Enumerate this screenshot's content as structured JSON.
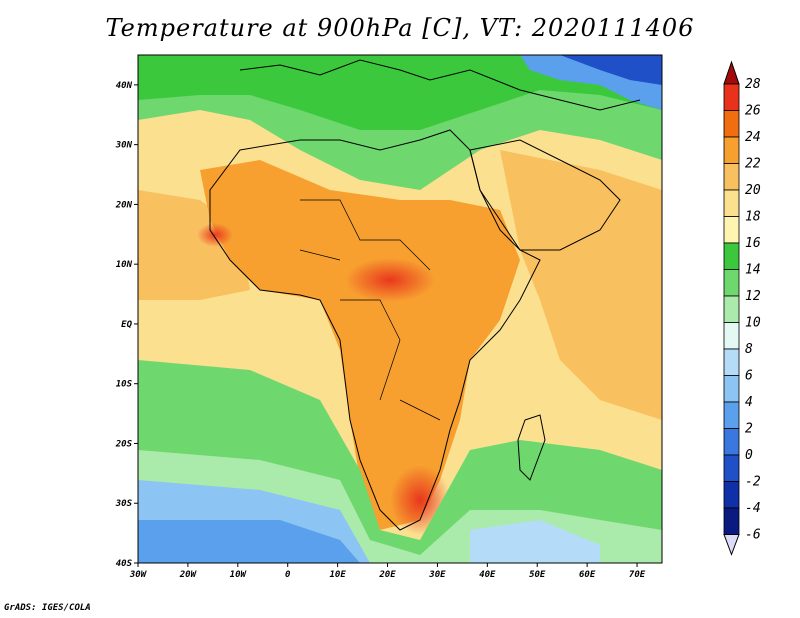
{
  "title": "Temperature at 900hPa [C], VT: 2020111406",
  "footer": "GrADS: IGES/COLA",
  "map": {
    "lon_range": [
      -30,
      75
    ],
    "lat_range": [
      -40,
      45
    ],
    "lon_ticks": [
      "30W",
      "20W",
      "10W",
      "0",
      "10E",
      "20E",
      "30E",
      "40E",
      "50E",
      "60E",
      "70E"
    ],
    "lat_ticks": [
      "40N",
      "30N",
      "20N",
      "10N",
      "EQ",
      "10S",
      "20S",
      "30S",
      "40S"
    ]
  },
  "colorbar": {
    "levels": [
      "28",
      "26",
      "24",
      "22",
      "20",
      "18",
      "16",
      "14",
      "12",
      "10",
      "8",
      "6",
      "4",
      "2",
      "0",
      "-2",
      "-4",
      "-6"
    ],
    "colors": [
      "#a50a0a",
      "#e8321c",
      "#f06d10",
      "#f7a030",
      "#f9c060",
      "#fbe090",
      "#fff4b0",
      "#3cc83c",
      "#6ed86e",
      "#aaeaaa",
      "#e4f8f4",
      "#b4dcf8",
      "#8cc4f4",
      "#5aa0ec",
      "#3a78e0",
      "#2050c8",
      "#1030a8",
      "#0a1a80",
      "#dcdcf8"
    ]
  }
}
